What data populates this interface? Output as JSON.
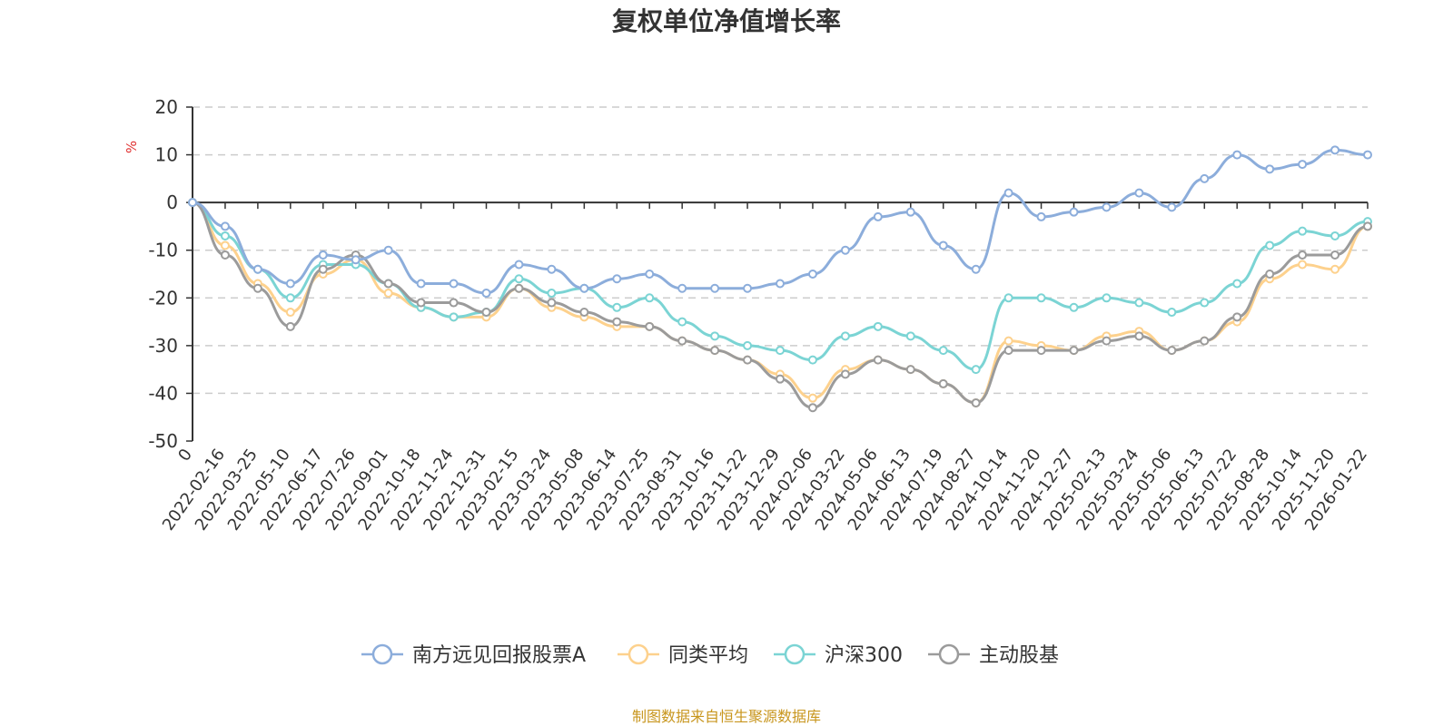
{
  "chart_data": {
    "type": "line",
    "title": "复权单位净值增长率",
    "ylabel": "%",
    "ylim": [
      -50,
      20
    ],
    "yticks": [
      20,
      10,
      0,
      -10,
      -20,
      -30,
      -40,
      -50
    ],
    "grid": true,
    "legend_position": "bottom",
    "source": "制图数据来自恒生聚源数据库",
    "x": [
      "0",
      "2022-02-16",
      "2022-03-25",
      "2022-05-10",
      "2022-06-17",
      "2022-07-26",
      "2022-09-01",
      "2022-10-18",
      "2022-11-24",
      "2022-12-31",
      "2023-02-15",
      "2023-03-24",
      "2023-05-08",
      "2023-06-14",
      "2023-07-25",
      "2023-08-31",
      "2023-10-16",
      "2023-11-22",
      "2023-12-29",
      "2024-02-06",
      "2024-03-22",
      "2024-05-06",
      "2024-06-13",
      "2024-07-19",
      "2024-08-27",
      "2024-10-14",
      "2024-11-20",
      "2024-12-27",
      "2025-02-13",
      "2025-03-24",
      "2025-05-06",
      "2025-06-13",
      "2025-07-22",
      "2025-08-28",
      "2025-10-14",
      "2025-11-20",
      "2026-01-22"
    ],
    "series": [
      {
        "name": "南方远见回报股票A",
        "color": "#8caddb",
        "values": [
          0,
          -5,
          -14,
          -17,
          -11,
          -12,
          -10,
          -17,
          -17,
          -19,
          -13,
          -14,
          -18,
          -16,
          -15,
          -18,
          -18,
          -18,
          -17,
          -15,
          -10,
          -3,
          -2,
          -9,
          -14,
          2,
          -3,
          -2,
          -1,
          2,
          -1,
          5,
          10,
          7,
          8,
          11,
          10
        ]
      },
      {
        "name": "同类平均",
        "color": "#fdd18d",
        "values": [
          0,
          -9,
          -17,
          -23,
          -15,
          -12,
          -19,
          -22,
          -24,
          -24,
          -18,
          -22,
          -24,
          -26,
          -26,
          -29,
          -31,
          -33,
          -36,
          -41,
          -35,
          -33,
          -35,
          -38,
          -42,
          -29,
          -30,
          -31,
          -28,
          -27,
          -31,
          -29,
          -25,
          -16,
          -13,
          -14,
          -5
        ]
      },
      {
        "name": "沪深300",
        "color": "#7bd4d4",
        "values": [
          0,
          -7,
          -14,
          -20,
          -13,
          -13,
          -17,
          -22,
          -24,
          -23,
          -16,
          -19,
          -18,
          -22,
          -20,
          -25,
          -28,
          -30,
          -31,
          -33,
          -28,
          -26,
          -28,
          -31,
          -35,
          -20,
          -20,
          -22,
          -20,
          -21,
          -23,
          -21,
          -17,
          -9,
          -6,
          -7,
          -4
        ]
      },
      {
        "name": "主动股基",
        "color": "#9b9b9b",
        "values": [
          0,
          -11,
          -18,
          -26,
          -14,
          -11,
          -17,
          -21,
          -21,
          -23,
          -18,
          -21,
          -23,
          -25,
          -26,
          -29,
          -31,
          -33,
          -37,
          -43,
          -36,
          -33,
          -35,
          -38,
          -42,
          -31,
          -31,
          -31,
          -29,
          -28,
          -31,
          -29,
          -24,
          -15,
          -11,
          -11,
          -5
        ]
      }
    ]
  }
}
